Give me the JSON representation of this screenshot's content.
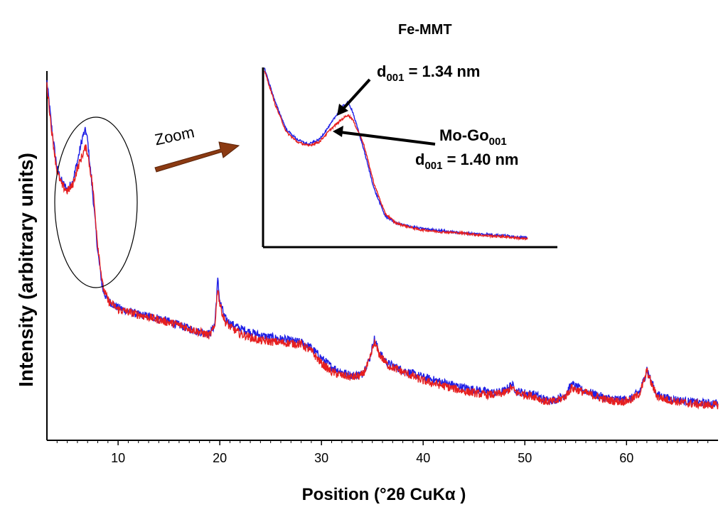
{
  "chart_data": {
    "type": "line",
    "xlabel": "Position (°2θ CuKα )",
    "ylabel": "Intensity (arbitrary units)",
    "xlim": [
      3,
      69
    ],
    "ylim": [
      0,
      100
    ],
    "y_ticks_shown": false,
    "grid": false,
    "x_ticks": [
      10,
      20,
      30,
      40,
      50,
      60
    ],
    "x_tick_labels": [
      "10",
      "20",
      "30",
      "40",
      "50",
      "60"
    ],
    "series": [
      {
        "name": "Fe-MMT",
        "color": "#1f1fe6",
        "x": [
          3,
          3.5,
          4,
          4.5,
          5,
          5.5,
          6,
          6.5,
          6.8,
          7,
          7.5,
          8,
          8.5,
          9,
          10,
          12,
          14,
          16,
          18,
          19,
          19.5,
          19.8,
          20,
          20.5,
          21,
          22,
          24,
          26,
          28,
          29,
          30,
          31,
          32,
          33,
          34,
          34.7,
          35.2,
          35.7,
          36.5,
          38,
          40,
          42,
          44,
          46,
          47,
          48,
          48.7,
          49.2,
          50,
          51,
          52,
          53,
          54,
          54.6,
          55.5,
          56.5,
          58,
          59.5,
          60.5,
          61.3,
          61.8,
          62,
          62.4,
          63,
          64,
          66,
          68,
          69
        ],
        "y": [
          97,
          83,
          72,
          68,
          66,
          68,
          74,
          81,
          83,
          80,
          65,
          48,
          37,
          34,
          32,
          30,
          29,
          27,
          25,
          24.5,
          27,
          40,
          34,
          29,
          27.5,
          26,
          24,
          23,
          22,
          20.5,
          17.5,
          15,
          13.5,
          12.5,
          13,
          17,
          23,
          19,
          16,
          14,
          12,
          10.5,
          9,
          8,
          7.5,
          8,
          10,
          8,
          7.5,
          7,
          5.5,
          5.5,
          7,
          10,
          8.5,
          7.5,
          6,
          5.5,
          6,
          8,
          12,
          14.5,
          11,
          7,
          6,
          5,
          4.5,
          4.5
        ]
      },
      {
        "name": "Mo-Go",
        "color": "#e61f1f",
        "x": [
          3,
          3.5,
          4,
          4.5,
          5,
          5.5,
          6,
          6.5,
          6.8,
          7,
          7.5,
          8,
          8.5,
          9,
          10,
          12,
          14,
          16,
          18,
          19,
          19.5,
          19.8,
          20,
          20.5,
          21,
          22,
          24,
          26,
          28,
          29,
          30,
          31,
          32,
          33,
          34,
          34.7,
          35.2,
          35.7,
          36.5,
          38,
          40,
          42,
          44,
          46,
          47,
          48,
          48.7,
          49.2,
          50,
          51,
          52,
          53,
          54,
          54.6,
          55.5,
          56.5,
          58,
          59.5,
          60.5,
          61.3,
          61.8,
          62,
          62.4,
          63,
          64,
          66,
          68,
          69
        ],
        "y": [
          96,
          82,
          71,
          67,
          65.5,
          67,
          72,
          76,
          78,
          76.5,
          67,
          50,
          38,
          34,
          31.5,
          30,
          28.5,
          27,
          25,
          24,
          26.5,
          38,
          33,
          28,
          26.5,
          24.5,
          22.5,
          22,
          21.5,
          19.5,
          16,
          13.5,
          12.5,
          12,
          12.5,
          16.5,
          22,
          18.5,
          15.5,
          13.5,
          11,
          9.5,
          8,
          7,
          7,
          7.5,
          9,
          7.5,
          7,
          6.5,
          5,
          5,
          6.5,
          9,
          8,
          7,
          5.5,
          5,
          5.5,
          7.5,
          11.5,
          14,
          10.5,
          6.5,
          5.5,
          4.5,
          4,
          4
        ]
      }
    ],
    "annotations": {
      "zoom": "Zoom",
      "inset_title": "Fe-MMT",
      "d_symbol": "d",
      "d_sub": "001",
      "fe_value": " = 1.34 nm",
      "mo_name": "Mo-Go",
      "mo_sub": "001",
      "mo_value": " = 1.40 nm"
    },
    "inset": {
      "description_range_x": [
        3,
        15
      ],
      "series": [
        {
          "name": "Fe-MMT",
          "color": "#1f1fe6",
          "x": [
            3,
            3.5,
            4,
            4.5,
            5,
            5.5,
            6,
            6.5,
            6.8,
            7,
            7.5,
            8,
            8.5,
            9,
            10,
            11,
            12,
            13,
            14,
            15
          ],
          "y": [
            97,
            83,
            72,
            68,
            66,
            68,
            74,
            81,
            83,
            80,
            65,
            48,
            37,
            34,
            32,
            31,
            30,
            29.5,
            29,
            28
          ]
        },
        {
          "name": "Mo-Go",
          "color": "#e61f1f",
          "x": [
            3,
            3.5,
            4,
            4.5,
            5,
            5.5,
            6,
            6.5,
            6.8,
            7,
            7.5,
            8,
            8.5,
            9,
            10,
            11,
            12,
            13,
            14,
            15
          ],
          "y": [
            96,
            82,
            71,
            67,
            65.5,
            67,
            72,
            76,
            78,
            76.5,
            67,
            50,
            38,
            34,
            31.5,
            30.5,
            30,
            29,
            28.5,
            27.5
          ]
        }
      ]
    }
  }
}
